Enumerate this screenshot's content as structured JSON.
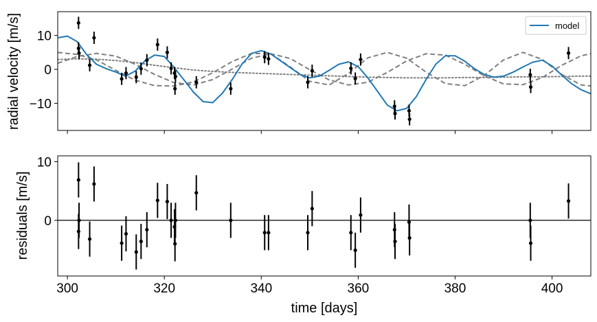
{
  "chart_data": [
    {
      "type": "scatter",
      "ylabel": "radial velocity [m/s]",
      "xlim": [
        298,
        408
      ],
      "ylim": [
        -18,
        17
      ],
      "xticks": [
        300,
        320,
        340,
        360,
        380,
        400
      ],
      "xtick_labels": [
        "",
        "",
        "",
        "",
        "",
        ""
      ],
      "yticks": [
        -10,
        0,
        10
      ],
      "ytick_labels": [
        "−10",
        "0",
        "10"
      ],
      "legend": {
        "position": "top-right",
        "entries": [
          {
            "label": "model",
            "color": "#1f77b4"
          }
        ]
      },
      "series": [
        {
          "name": "model",
          "kind": "line",
          "color": "#1f77b4",
          "x": [
            298,
            300,
            302,
            304,
            306,
            308,
            310,
            312,
            314,
            316,
            318,
            320,
            322,
            324,
            326,
            328,
            330,
            332,
            334,
            336,
            338,
            340,
            342,
            344,
            346,
            348,
            350,
            352,
            354,
            356,
            358,
            360,
            362,
            364,
            366,
            368,
            370,
            372,
            374,
            376,
            378,
            380,
            382,
            384,
            386,
            388,
            390,
            392,
            394,
            396,
            398,
            400,
            402,
            404,
            406,
            408
          ],
          "y": [
            9.3,
            9.8,
            8.2,
            4.3,
            1.5,
            0.2,
            -0.8,
            -2.0,
            -0.5,
            2.5,
            4.2,
            3.8,
            0.6,
            -3.0,
            -6.7,
            -9.5,
            -9.8,
            -7.0,
            -3.0,
            1.5,
            4.7,
            5.5,
            4.5,
            2.5,
            0.5,
            -1.5,
            -2.5,
            -2.0,
            -0.3,
            1.5,
            2.2,
            0.8,
            -2.5,
            -6.5,
            -10.5,
            -12.2,
            -11.5,
            -8.0,
            -3.0,
            1.5,
            4.0,
            4.0,
            2.4,
            0.2,
            -1.5,
            -2.3,
            -2.0,
            -0.8,
            0.7,
            2.1,
            2.7,
            1.0,
            -1.7,
            -4.2,
            -6.0,
            -7.2
          ]
        },
        {
          "name": "",
          "kind": "dashed",
          "color": "#7f7f7f",
          "x": [
            298,
            302,
            306,
            310,
            314,
            318,
            322,
            326,
            330,
            334,
            338,
            342,
            346,
            350,
            354,
            358,
            362,
            366,
            370,
            374,
            378,
            382,
            386,
            390,
            394,
            398,
            402,
            406,
            408
          ],
          "y": [
            5.0,
            4.4,
            2.8,
            -0.3,
            -3.2,
            -4.8,
            -4.9,
            -3.7,
            -1.0,
            2.3,
            4.7,
            4.6,
            0.7,
            -3.5,
            -4.6,
            -1.2,
            3.4,
            5.0,
            3.3,
            -0.8,
            -4.2,
            -4.8,
            -1.8,
            2.8,
            5.0,
            2.9,
            -1.5,
            -4.6,
            -4.9
          ]
        },
        {
          "name": "",
          "kind": "dashed",
          "color": "#7f7f7f",
          "x": [
            298,
            302,
            306,
            310,
            314,
            318,
            322,
            326,
            330,
            334,
            338,
            342,
            346,
            350,
            354,
            358,
            362,
            366,
            370,
            374,
            378,
            382,
            386,
            390,
            394,
            398,
            402,
            406,
            408
          ],
          "y": [
            1.8,
            3.8,
            4.7,
            3.9,
            1.5,
            -1.5,
            -3.9,
            -4.6,
            -3.0,
            0.1,
            3.3,
            4.6,
            3.2,
            -0.1,
            -3.1,
            -4.6,
            -3.8,
            -0.9,
            2.5,
            4.6,
            4.2,
            1.5,
            -1.9,
            -4.3,
            -4.5,
            -2.4,
            1.2,
            4.0,
            4.6
          ]
        },
        {
          "name": "",
          "kind": "dotted",
          "color": "#7f7f7f",
          "x": [
            298,
            302,
            306,
            310,
            314,
            318,
            322,
            326,
            330,
            334,
            338,
            342,
            346,
            350,
            354,
            358,
            362,
            366,
            370,
            374,
            378,
            382,
            386,
            390,
            394,
            398,
            402,
            406,
            408
          ],
          "y": [
            2.9,
            3.1,
            3.0,
            2.6,
            2.0,
            1.2,
            0.5,
            -0.2,
            -0.6,
            -0.9,
            -1.1,
            -1.3,
            -1.5,
            -1.7,
            -1.9,
            -2.1,
            -2.3,
            -2.4,
            -2.5,
            -2.5,
            -2.5,
            -2.4,
            -2.4,
            -2.3,
            -2.2,
            -2.2,
            -2.1,
            -2.0,
            -2.0
          ]
        },
        {
          "name": "",
          "kind": "errorbar",
          "color": "#000000",
          "x": [
            302.3,
            302.3,
            302.4,
            304.6,
            305.5,
            311.2,
            312.1,
            314.2,
            315.2,
            316.4,
            318.6,
            320.6,
            321.4,
            322.1,
            322.3,
            322.2,
            326.6,
            333.7,
            340.7,
            341.5,
            349.6,
            350.5,
            358.5,
            359.4,
            360.5,
            367.5,
            367.6,
            370.5,
            370.6,
            395.5,
            395.6,
            403.4
          ],
          "y": [
            13.7,
            6.2,
            4.8,
            1.2,
            9.3,
            -2.8,
            -1.1,
            -2.3,
            0.2,
            2.7,
            7.3,
            5.0,
            0.3,
            -1.1,
            -2.1,
            -5.7,
            -3.8,
            -5.7,
            3.6,
            3.1,
            -3.8,
            -0.4,
            0.3,
            -2.7,
            2.9,
            -10.9,
            -13.0,
            -12.2,
            -14.7,
            -1.6,
            -5.2,
            4.8
          ],
          "err": [
            1.8,
            1.8,
            1.8,
            1.8,
            1.8,
            1.8,
            1.8,
            1.8,
            1.8,
            1.8,
            1.8,
            1.8,
            1.8,
            1.8,
            1.8,
            1.8,
            1.8,
            1.8,
            1.8,
            1.8,
            1.8,
            1.8,
            1.8,
            1.8,
            1.8,
            1.8,
            1.8,
            1.8,
            1.8,
            1.8,
            1.8,
            1.8
          ]
        }
      ]
    },
    {
      "type": "scatter",
      "xlabel": "time [days]",
      "ylabel": "residuals [m/s]",
      "xlim": [
        298,
        408
      ],
      "ylim": [
        -9.5,
        11
      ],
      "xticks": [
        300,
        320,
        340,
        360,
        380,
        400
      ],
      "xtick_labels": [
        "300",
        "320",
        "340",
        "360",
        "380",
        "400"
      ],
      "yticks": [
        0,
        10
      ],
      "ytick_labels": [
        "0",
        "10"
      ],
      "zero_line": 0,
      "series": [
        {
          "name": "",
          "kind": "errorbar",
          "color": "#000000",
          "x": [
            302.3,
            302.3,
            302.4,
            304.6,
            305.5,
            311.2,
            312.1,
            314.2,
            315.2,
            316.4,
            318.6,
            320.6,
            321.4,
            322.1,
            322.3,
            322.2,
            326.6,
            333.7,
            340.7,
            341.5,
            349.6,
            350.5,
            358.5,
            359.4,
            360.5,
            367.5,
            367.6,
            370.5,
            370.6,
            395.5,
            395.6,
            403.4
          ],
          "y": [
            6.9,
            -1.9,
            0.0,
            -3.2,
            6.2,
            -3.9,
            -2.3,
            -5.4,
            -3.6,
            -1.6,
            3.4,
            3.2,
            0.0,
            -1.1,
            0.0,
            -4.0,
            4.7,
            0.0,
            -2.1,
            -2.1,
            -2.1,
            2.0,
            -2.1,
            -5.1,
            0.9,
            -1.6,
            -3.6,
            -0.3,
            -3.0,
            0.0,
            -3.9,
            3.3
          ],
          "err": [
            3.0,
            3.0,
            3.0,
            3.0,
            3.0,
            3.0,
            3.0,
            3.0,
            3.0,
            3.0,
            3.0,
            3.0,
            3.0,
            3.0,
            3.0,
            3.0,
            3.0,
            3.0,
            3.0,
            3.0,
            3.0,
            3.0,
            3.0,
            3.0,
            3.0,
            3.0,
            3.0,
            3.0,
            3.0,
            3.0,
            3.0,
            3.0
          ]
        }
      ]
    }
  ]
}
